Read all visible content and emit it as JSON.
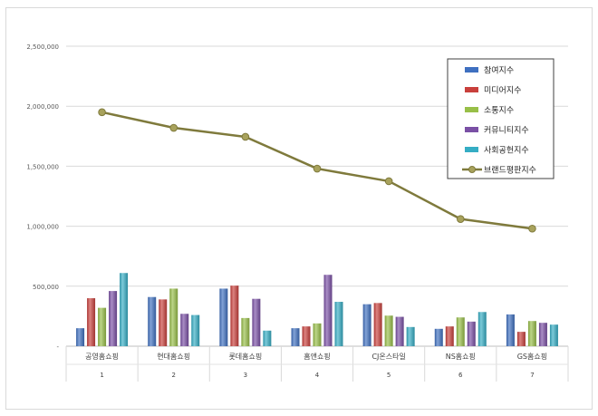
{
  "chart_data": {
    "type": "bar",
    "title": "",
    "xlabel": "",
    "ylabel": "",
    "ylim": [
      0,
      2500000
    ],
    "yticks": [
      0,
      500000,
      1000000,
      1500000,
      2000000,
      2500000
    ],
    "ytick_labels": [
      "-",
      "500,000",
      "1,000,000",
      "1,500,000",
      "2,000,000",
      "2,500,000"
    ],
    "grid": true,
    "legend_position": "top-right",
    "categories": [
      "공영홈쇼핑",
      "현대홈쇼핑",
      "롯데홈쇼핑",
      "홈앤쇼핑",
      "CJ온스타일",
      "NS홈쇼핑",
      "GS홈쇼핑"
    ],
    "ranks": [
      "1",
      "2",
      "3",
      "4",
      "5",
      "6",
      "7"
    ],
    "series": [
      {
        "name": "참여지수",
        "kind": "bar",
        "color": "#3f70c0",
        "values": [
          150000,
          410000,
          480000,
          150000,
          350000,
          145000,
          265000
        ]
      },
      {
        "name": "미디어지수",
        "kind": "bar",
        "color": "#c9403c",
        "values": [
          400000,
          390000,
          505000,
          165000,
          360000,
          165000,
          120000
        ]
      },
      {
        "name": "소통지수",
        "kind": "bar",
        "color": "#98bf48",
        "values": [
          320000,
          480000,
          235000,
          190000,
          255000,
          240000,
          210000
        ]
      },
      {
        "name": "커뮤니티지수",
        "kind": "bar",
        "color": "#7a50a5",
        "values": [
          460000,
          270000,
          395000,
          595000,
          245000,
          205000,
          195000
        ]
      },
      {
        "name": "사회공헌지수",
        "kind": "bar",
        "color": "#35adc4",
        "values": [
          610000,
          260000,
          130000,
          370000,
          160000,
          285000,
          180000
        ]
      },
      {
        "name": "브랜드평판지수",
        "kind": "line",
        "color": "#7f7a3c",
        "values": [
          1950000,
          1820000,
          1745000,
          1480000,
          1375000,
          1060000,
          980000
        ]
      }
    ]
  }
}
